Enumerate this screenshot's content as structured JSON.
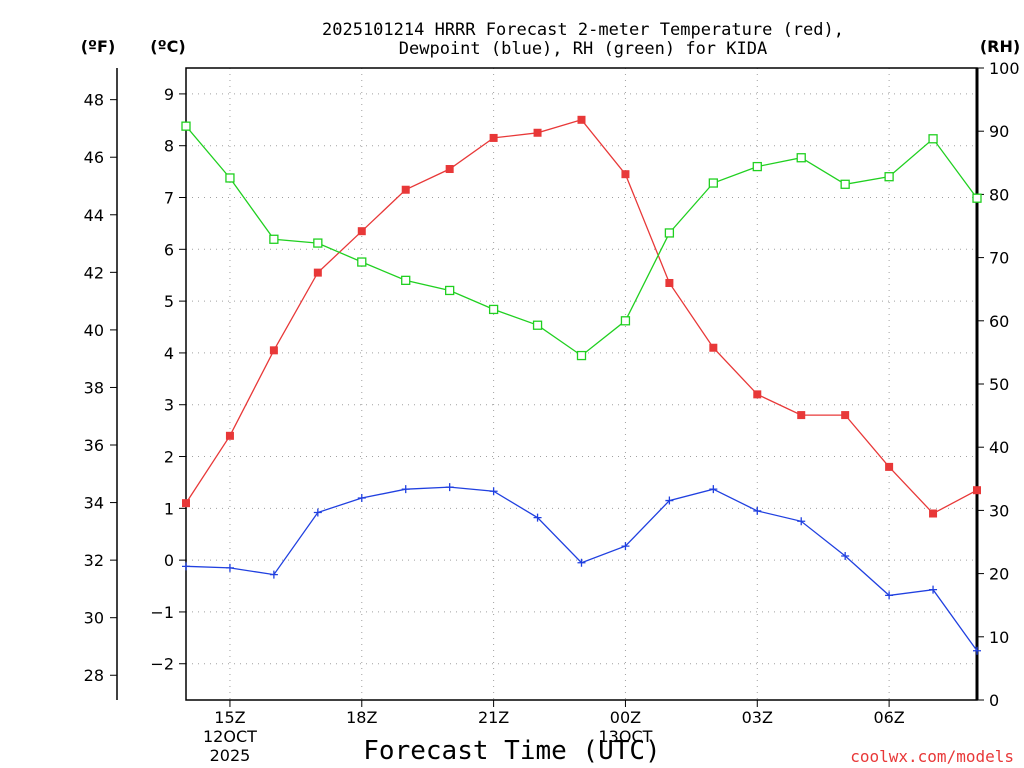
{
  "chart_data": {
    "type": "line",
    "title_line1": "2025101214 HRRR Forecast 2-meter Temperature (red),",
    "title_line2": "Dewpoint (blue), RH (green) for KIDA",
    "xlabel": "Forecast Time (UTC)",
    "credit": "coolwx.com/models",
    "units": {
      "fahrenheit": "(ºF)",
      "celsius": "(ºC)",
      "rh": "(RH)"
    },
    "colors": {
      "temperature": "#e83838",
      "dewpoint": "#2040e0",
      "rh": "#20d020",
      "grid": "#a0a0a0"
    },
    "x_range_hours": [
      14,
      32
    ],
    "x_ticks": [
      {
        "hour": 15,
        "label": "15Z",
        "sub1": "12OCT",
        "sub2": "2025"
      },
      {
        "hour": 18,
        "label": "18Z",
        "sub1": "",
        "sub2": ""
      },
      {
        "hour": 21,
        "label": "21Z",
        "sub1": "",
        "sub2": ""
      },
      {
        "hour": 24,
        "label": "00Z",
        "sub1": "13OCT",
        "sub2": ""
      },
      {
        "hour": 27,
        "label": "03Z",
        "sub1": "",
        "sub2": ""
      },
      {
        "hour": 30,
        "label": "06Z",
        "sub1": "",
        "sub2": ""
      }
    ],
    "celsius_range": [
      -2.7,
      9.5
    ],
    "celsius_ticks": [
      -2,
      -1,
      0,
      1,
      2,
      3,
      4,
      5,
      6,
      7,
      8,
      9
    ],
    "celsius_tick_labels": [
      "−2",
      "−1",
      "0",
      "1",
      "2",
      "3",
      "4",
      "5",
      "6",
      "7",
      "8",
      "9"
    ],
    "fahrenheit_ticks": [
      28,
      30,
      32,
      34,
      36,
      38,
      40,
      42,
      44,
      46,
      48
    ],
    "rh_range": [
      0,
      100
    ],
    "rh_ticks": [
      0,
      10,
      20,
      30,
      40,
      50,
      60,
      70,
      80,
      90,
      100
    ],
    "hours": [
      14,
      15,
      16,
      17,
      18,
      19,
      20,
      21,
      22,
      23,
      24,
      25,
      26,
      27,
      28,
      29,
      30,
      31,
      32
    ],
    "series": [
      {
        "name": "Temperature (°C)",
        "key": "temperature",
        "marker": "filled-square",
        "values": [
          1.1,
          2.4,
          4.05,
          5.55,
          6.35,
          7.15,
          7.55,
          8.15,
          8.25,
          8.5,
          7.45,
          5.35,
          4.1,
          3.2,
          2.8,
          2.8,
          1.8,
          0.9,
          1.35
        ]
      },
      {
        "name": "Dewpoint (°C)",
        "key": "dewpoint",
        "marker": "plus",
        "values": [
          -0.12,
          -0.15,
          -0.28,
          0.92,
          1.2,
          1.37,
          1.41,
          1.33,
          0.82,
          -0.05,
          0.27,
          1.15,
          1.37,
          0.95,
          0.75,
          0.08,
          -0.68,
          -0.57,
          -1.75
        ]
      },
      {
        "name": "RH (%)",
        "key": "rh",
        "marker": "open-square",
        "values": [
          90.8,
          82.6,
          72.9,
          72.3,
          69.3,
          66.4,
          64.8,
          61.8,
          59.3,
          54.5,
          60.0,
          73.9,
          81.8,
          84.4,
          85.8,
          81.6,
          82.8,
          88.8,
          79.4
        ]
      }
    ]
  }
}
